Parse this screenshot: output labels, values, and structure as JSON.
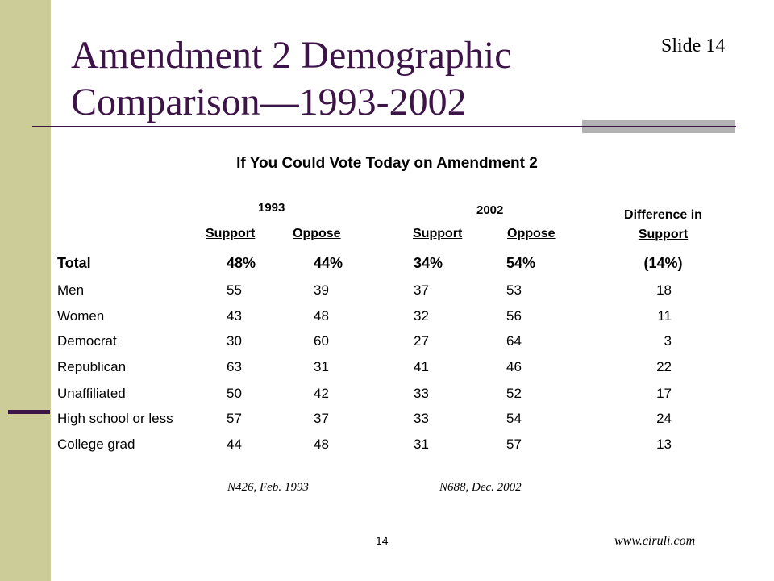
{
  "slide": {
    "title_line1": "Amendment 2 Demographic",
    "title_line2": "Comparison—1993-2002",
    "slide_label": "Slide 14",
    "page_number": "14",
    "website": "www.ciruli.com",
    "colors": {
      "accent": "#3d1447",
      "side_bar": "#cccc99",
      "rule_shade": "#b2b2b2"
    }
  },
  "table": {
    "heading": "If You Could Vote Today on Amendment 2",
    "year_1993": "1993",
    "year_2002": "2002",
    "support_label": "Support",
    "oppose_label": "Oppose",
    "diff_header_line1": "Difference in",
    "diff_header_line2": "Support",
    "rows": [
      {
        "label": "Total",
        "s93": "48%",
        "o93": "44%",
        "s02": "34%",
        "o02": "54%",
        "diff": "(14%)"
      },
      {
        "label": "Men",
        "s93": "55",
        "o93": "39",
        "s02": "37",
        "o02": "53",
        "diff": "18"
      },
      {
        "label": "Women",
        "s93": "43",
        "o93": "48",
        "s02": "32",
        "o02": "56",
        "diff": "11"
      },
      {
        "label": "Democrat",
        "s93": "30",
        "o93": "60",
        "s02": "27",
        "o02": "64",
        "diff": "3"
      },
      {
        "label": "Republican",
        "s93": "63",
        "o93": "31",
        "s02": "41",
        "o02": "46",
        "diff": "22"
      },
      {
        "label": "Unaffiliated",
        "s93": "50",
        "o93": "42",
        "s02": "33",
        "o02": "52",
        "diff": "17"
      },
      {
        "label": "High school or less",
        "s93": "57",
        "o93": "37",
        "s02": "33",
        "o02": "54",
        "diff": "24"
      },
      {
        "label": "College grad",
        "s93": "44",
        "o93": "48",
        "s02": "31",
        "o02": "57",
        "diff": "13"
      }
    ],
    "note_1993": "N426, Feb. 1993",
    "note_2002": "N688, Dec. 2002"
  }
}
